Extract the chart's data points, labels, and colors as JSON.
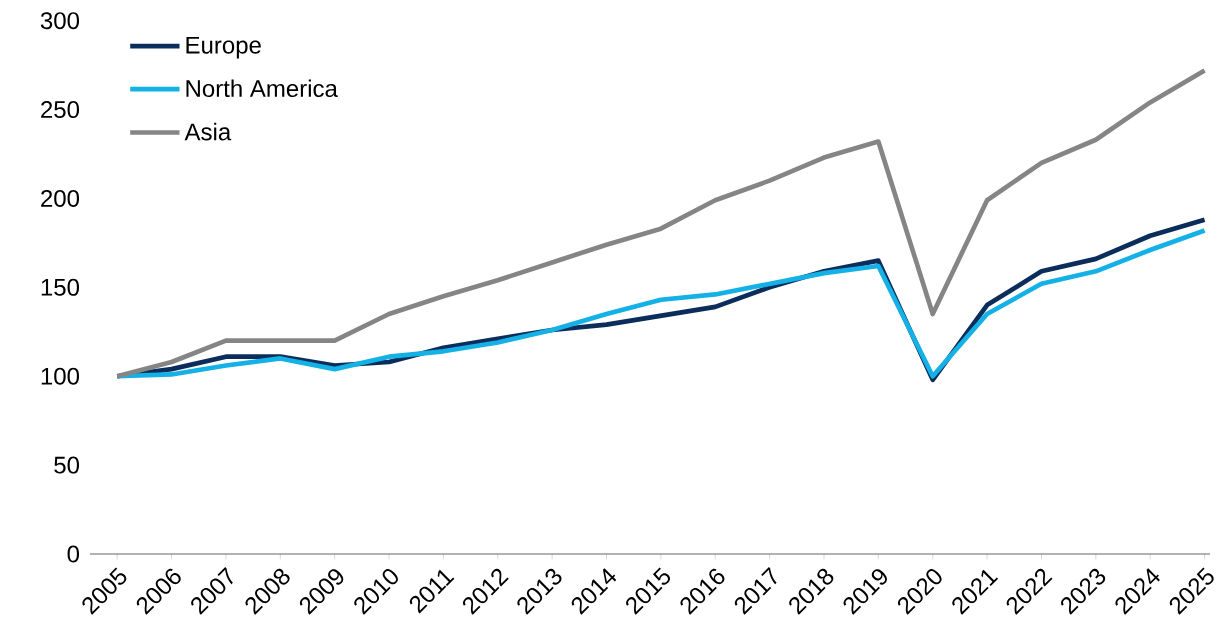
{
  "chart_data": {
    "type": "line",
    "categories": [
      "2005",
      "2006",
      "2007",
      "2008",
      "2009",
      "2010",
      "2011",
      "2012",
      "2013",
      "2014",
      "2015",
      "2016",
      "2017",
      "2018",
      "2019",
      "2020",
      "2021",
      "2022",
      "2023",
      "2024",
      "2025"
    ],
    "series": [
      {
        "name": "Europe",
        "color": "#0b2d5b",
        "values": [
          100,
          104,
          111,
          111,
          106,
          108,
          116,
          121,
          126,
          129,
          134,
          139,
          150,
          159,
          165,
          98,
          140,
          159,
          166,
          179,
          188
        ]
      },
      {
        "name": "North America",
        "color": "#14b1e7",
        "values": [
          100,
          101,
          106,
          110,
          104,
          111,
          114,
          119,
          126,
          135,
          143,
          146,
          152,
          158,
          162,
          100,
          135,
          152,
          159,
          171,
          182
        ]
      },
      {
        "name": "Asia",
        "color": "#858585",
        "values": [
          100,
          108,
          120,
          120,
          120,
          135,
          145,
          154,
          164,
          174,
          183,
          199,
          210,
          223,
          232,
          135,
          199,
          220,
          233,
          254,
          272
        ]
      }
    ],
    "ylim": [
      0,
      300
    ],
    "yticks": [
      0,
      50,
      100,
      150,
      200,
      250,
      300
    ],
    "legend": "top left",
    "grid": false,
    "marker": "none",
    "line_style": "solid"
  }
}
